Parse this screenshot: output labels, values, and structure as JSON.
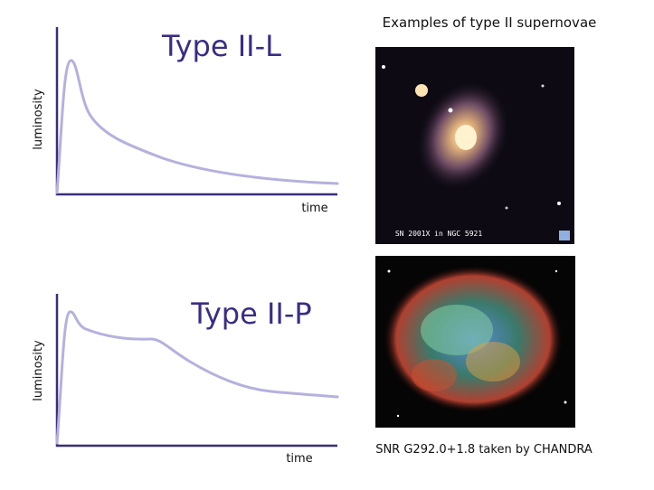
{
  "title": "Examples of type II supernovae",
  "panels": [
    {
      "title": "Type II-L",
      "y_label": "luminosity",
      "x_label": "time"
    },
    {
      "title": "Type II-P",
      "y_label": "luminosity",
      "x_label": "time"
    }
  ],
  "images": [
    {
      "label": "SN 2001X in NGC 5921"
    },
    {
      "caption": "SNR G292.0+1.8 taken by CHANDRA"
    }
  ]
}
